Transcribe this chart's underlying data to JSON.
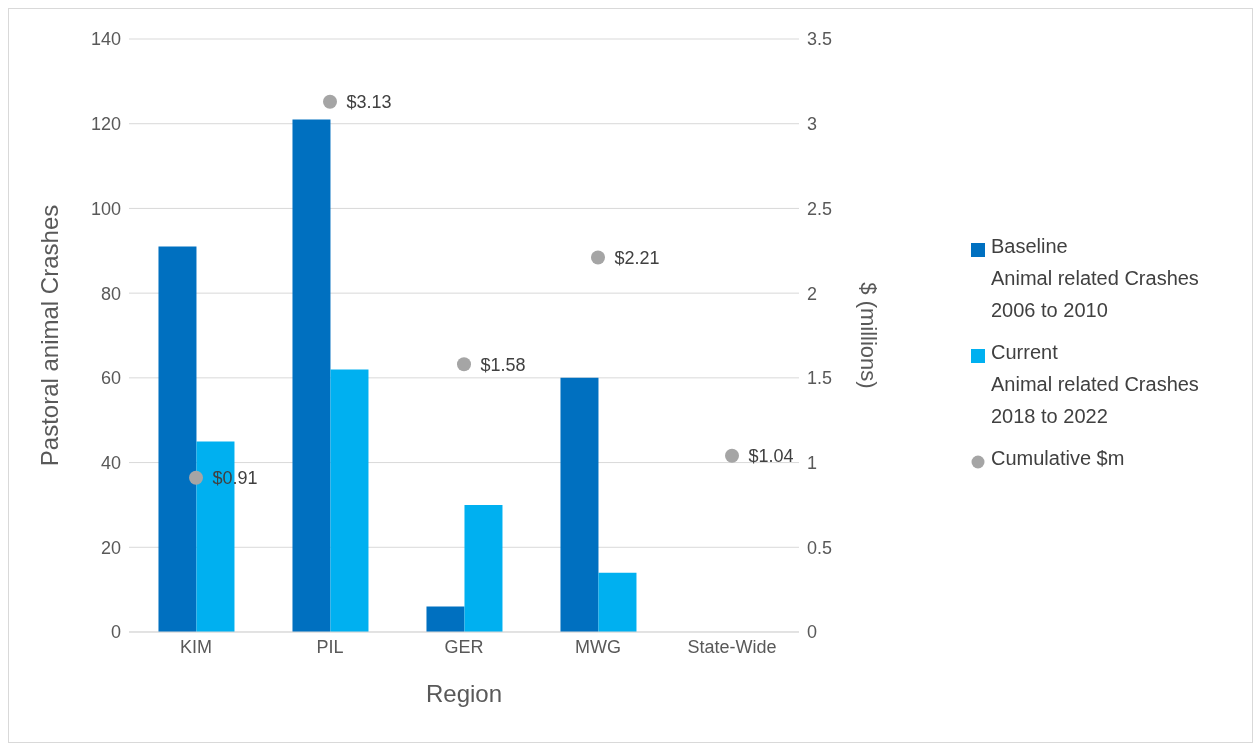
{
  "chart_data": {
    "type": "bar",
    "xlabel": "Region",
    "ylabel": "Pastoral animal Crashes",
    "y2label": "$ (millions)",
    "categories": [
      "KIM",
      "PIL",
      "GER",
      "MWG",
      "State-Wide"
    ],
    "series": [
      {
        "name": "Baseline\nAnimal related Crashes\n2006 to 2010",
        "color": "#0070c0",
        "values": [
          91,
          121,
          6,
          60,
          null
        ]
      },
      {
        "name": "Current\nAnimal related Crashes\n2018 to 2022",
        "color": "#00b0f0",
        "values": [
          45,
          62,
          30,
          14,
          null
        ]
      },
      {
        "name": "Cumulative $m",
        "type": "scatter",
        "axis": "y2",
        "marker": "circle",
        "color": "#a5a5a5",
        "values": [
          0.91,
          3.13,
          1.58,
          2.21,
          1.04
        ],
        "value_labels": [
          "$0.91",
          "$3.13",
          "$1.58",
          "$2.21",
          "$1.04"
        ]
      }
    ],
    "ylim": [
      0,
      140
    ],
    "yticks": [
      0,
      20,
      40,
      60,
      80,
      100,
      120,
      140
    ],
    "y2lim": [
      0,
      3.5
    ],
    "y2ticks": [
      0,
      0.5,
      1,
      1.5,
      2,
      2.5,
      3,
      3.5
    ],
    "grid": "y",
    "legend": "right"
  }
}
